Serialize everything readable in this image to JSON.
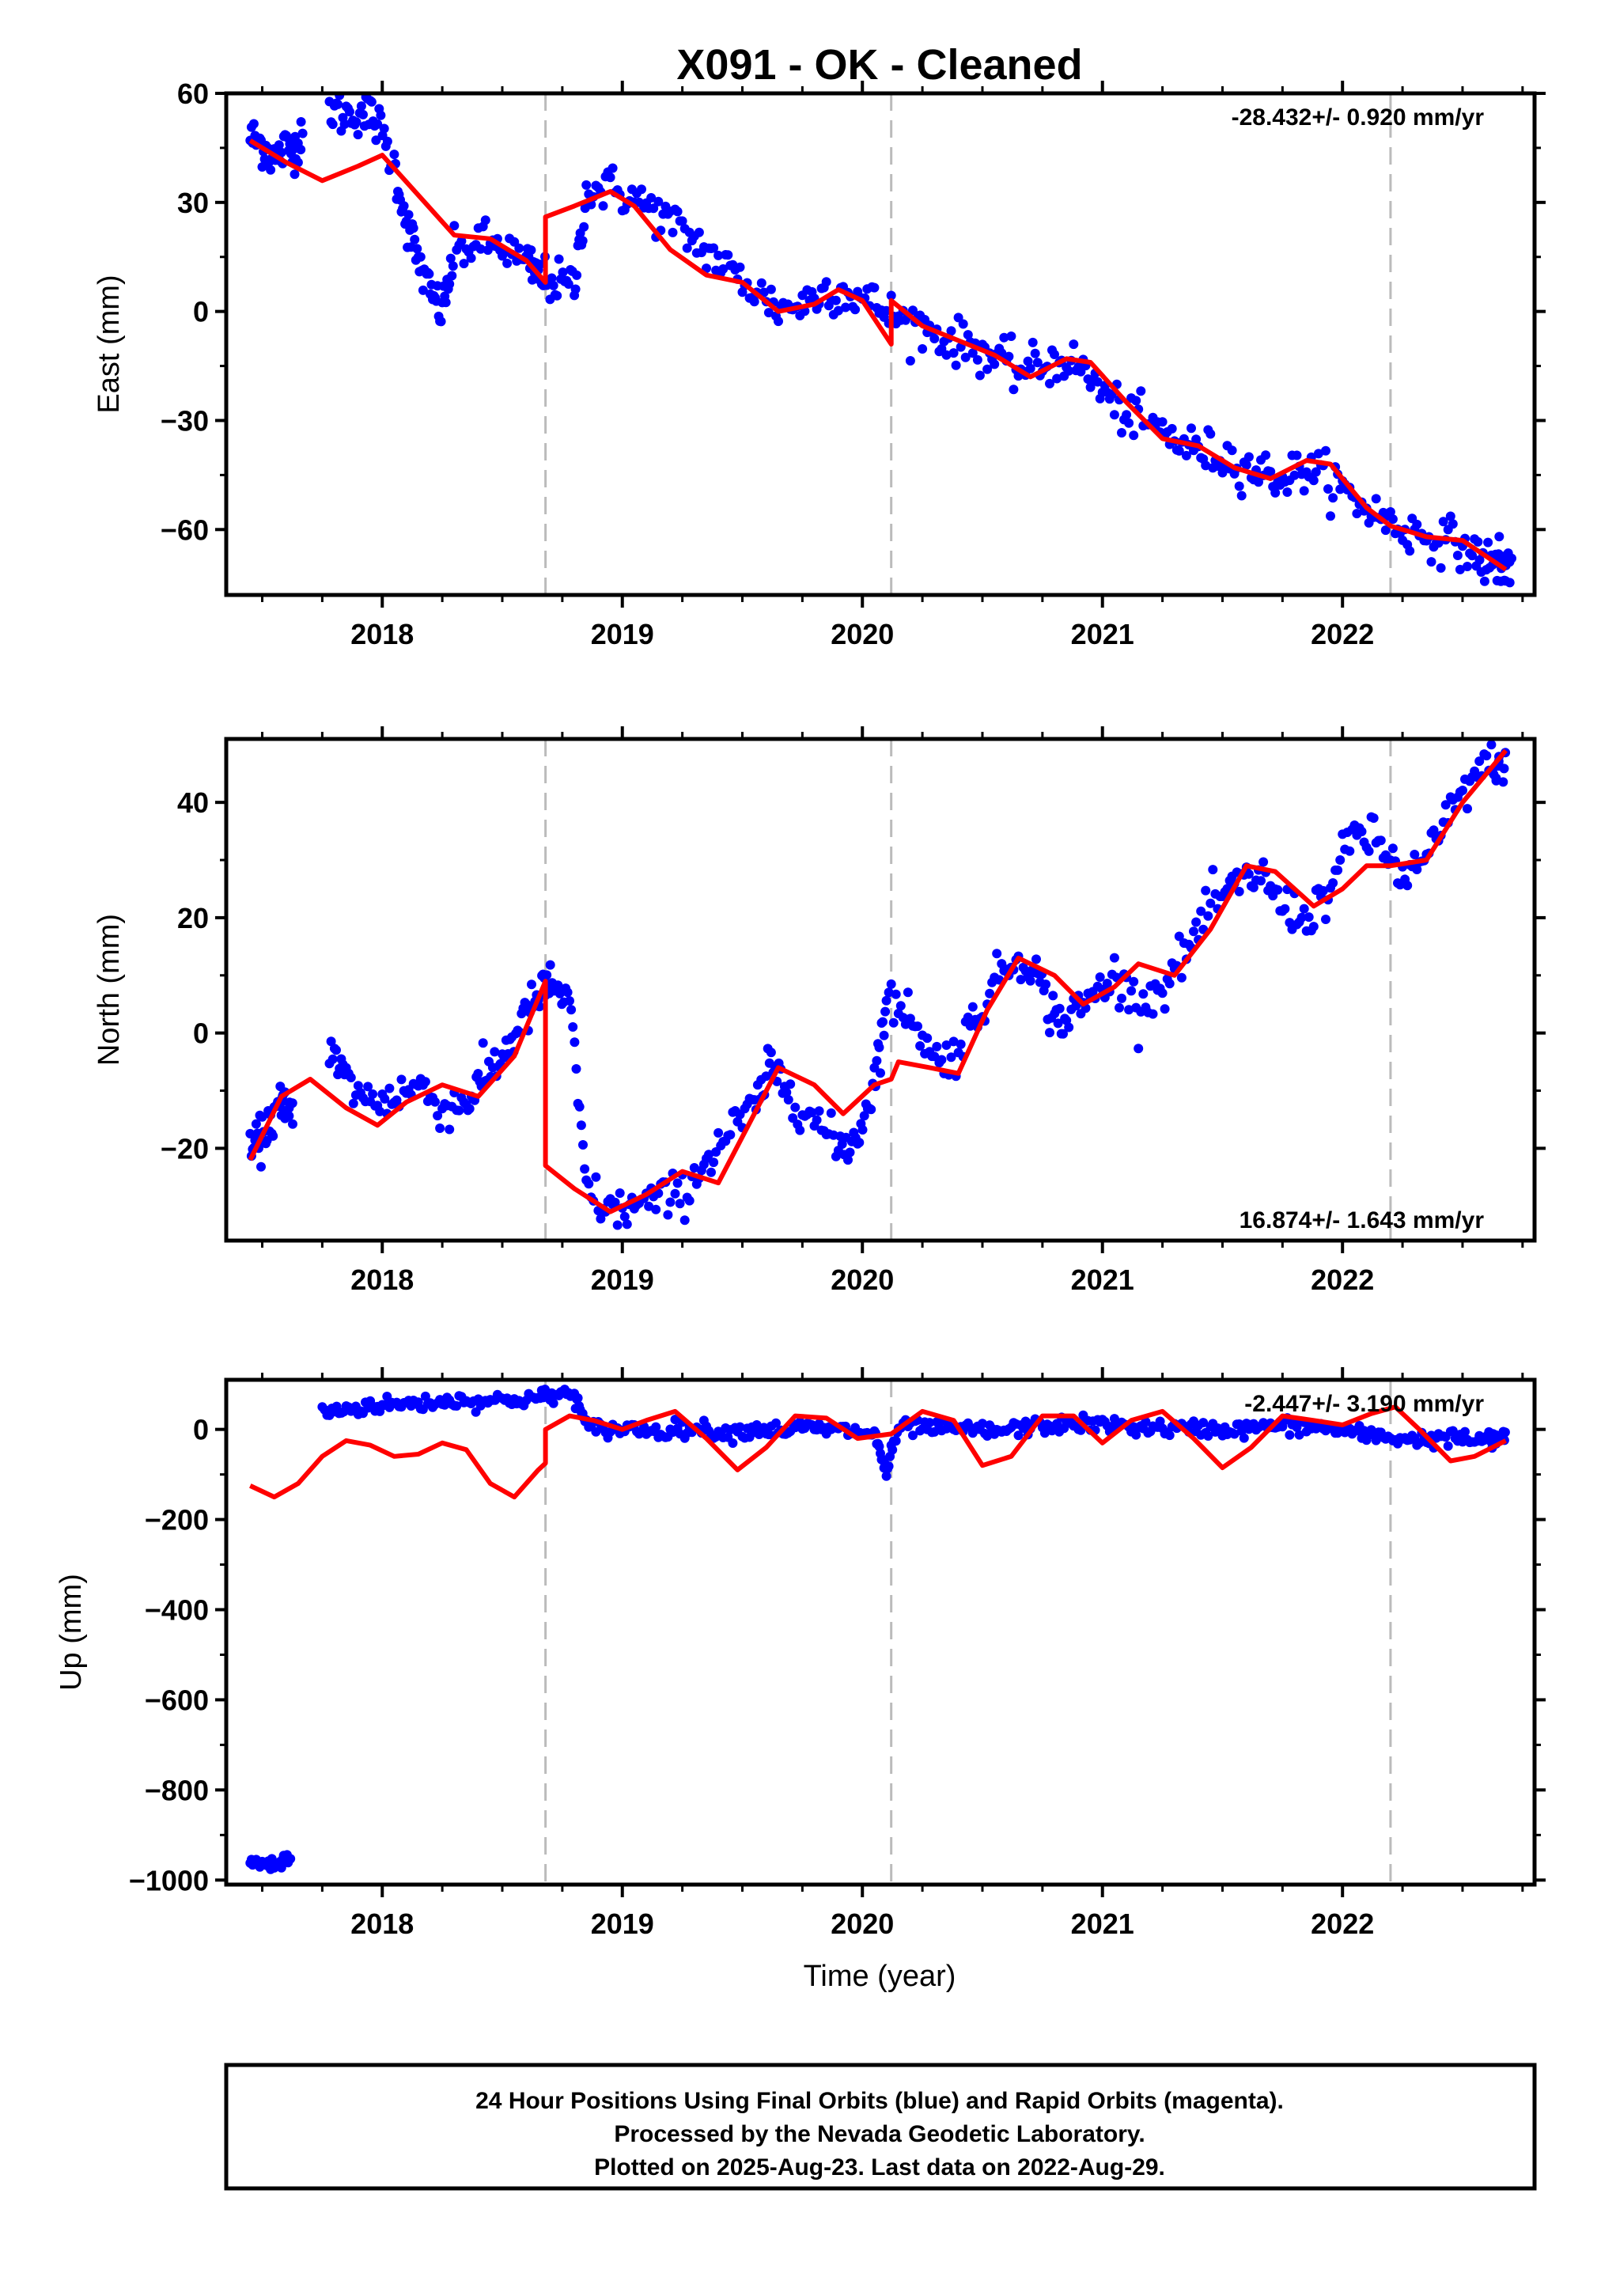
{
  "title": "X091  - OK - Cleaned",
  "xlabel": "Time (year)",
  "footer": {
    "line1": "24 Hour Positions Using Final Orbits (blue) and Rapid Orbits (magenta).",
    "line2": "Processed by the Nevada Geodetic Laboratory.",
    "line3": "Plotted on 2025-Aug-23. Last data on 2022-Aug-29."
  },
  "colors": {
    "points": "#0000ff",
    "model": "#ff0000",
    "breaks": "#bbbbbb"
  },
  "chart_data": [
    {
      "type": "scatter",
      "component": "East",
      "ylabel": "East (mm)",
      "rate_label": "-28.432+/- 0.920 mm/yr",
      "xlim": [
        2017.35,
        2022.8
      ],
      "ylim": [
        -78,
        60
      ],
      "yticks": [
        60,
        30,
        0,
        -30,
        -60
      ],
      "xticks": [
        2018,
        2019,
        2020,
        2021,
        2022
      ],
      "xtick_labels": [
        "2018",
        "2019",
        "2020",
        "2021",
        "2022"
      ],
      "breaks": [
        2018.68,
        2020.12,
        2022.2
      ],
      "observations": [
        [
          2017.45,
          48
        ],
        [
          2017.5,
          46
        ],
        [
          2017.55,
          42
        ],
        [
          2017.6,
          45
        ],
        [
          2017.65,
          46
        ],
        [
          2017.78,
          56
        ],
        [
          2017.85,
          54
        ],
        [
          2017.92,
          55
        ],
        [
          2017.98,
          52
        ],
        [
          2018.05,
          40
        ],
        [
          2018.1,
          25
        ],
        [
          2018.15,
          14
        ],
        [
          2018.2,
          5
        ],
        [
          2018.25,
          0
        ],
        [
          2018.3,
          16
        ],
        [
          2018.4,
          19
        ],
        [
          2018.5,
          18
        ],
        [
          2018.6,
          13
        ],
        [
          2018.65,
          10
        ],
        [
          2018.72,
          8
        ],
        [
          2018.8,
          7
        ],
        [
          2018.85,
          33
        ],
        [
          2018.95,
          34
        ],
        [
          2019.05,
          31
        ],
        [
          2019.15,
          27
        ],
        [
          2019.25,
          22
        ],
        [
          2019.35,
          17
        ],
        [
          2019.45,
          11
        ],
        [
          2019.55,
          6
        ],
        [
          2019.65,
          1
        ],
        [
          2019.75,
          2
        ],
        [
          2019.85,
          6
        ],
        [
          2019.95,
          5
        ],
        [
          2020.05,
          2
        ],
        [
          2020.15,
          -2
        ],
        [
          2020.25,
          -4
        ],
        [
          2020.35,
          -8
        ],
        [
          2020.45,
          -9
        ],
        [
          2020.55,
          -13
        ],
        [
          2020.65,
          -16
        ],
        [
          2020.75,
          -15
        ],
        [
          2020.85,
          -13
        ],
        [
          2020.95,
          -18
        ],
        [
          2021.05,
          -26
        ],
        [
          2021.15,
          -30
        ],
        [
          2021.25,
          -33
        ],
        [
          2021.35,
          -37
        ],
        [
          2021.45,
          -39
        ],
        [
          2021.55,
          -41
        ],
        [
          2021.65,
          -44
        ],
        [
          2021.75,
          -46
        ],
        [
          2021.85,
          -43
        ],
        [
          2021.95,
          -46
        ],
        [
          2022.05,
          -52
        ],
        [
          2022.15,
          -56
        ],
        [
          2022.25,
          -60
        ],
        [
          2022.35,
          -62
        ],
        [
          2022.45,
          -63
        ],
        [
          2022.55,
          -67
        ],
        [
          2022.62,
          -70
        ],
        [
          2022.68,
          -69
        ]
      ],
      "model": [
        [
          2017.45,
          47
        ],
        [
          2017.6,
          41
        ],
        [
          2017.75,
          36
        ],
        [
          2017.9,
          40
        ],
        [
          2018.0,
          43
        ],
        [
          2018.15,
          32
        ],
        [
          2018.3,
          21
        ],
        [
          2018.45,
          20
        ],
        [
          2018.6,
          14
        ],
        [
          2018.68,
          8
        ],
        [
          2018.68,
          26
        ],
        [
          2018.8,
          29
        ],
        [
          2018.95,
          33
        ],
        [
          2019.05,
          29
        ],
        [
          2019.2,
          17
        ],
        [
          2019.35,
          10
        ],
        [
          2019.5,
          8
        ],
        [
          2019.65,
          0
        ],
        [
          2019.8,
          2
        ],
        [
          2019.9,
          6
        ],
        [
          2020.0,
          3
        ],
        [
          2020.12,
          -9
        ],
        [
          2020.12,
          3
        ],
        [
          2020.25,
          -4
        ],
        [
          2020.4,
          -8
        ],
        [
          2020.55,
          -12
        ],
        [
          2020.7,
          -18
        ],
        [
          2020.85,
          -13
        ],
        [
          2020.95,
          -14
        ],
        [
          2021.1,
          -25
        ],
        [
          2021.25,
          -35
        ],
        [
          2021.4,
          -37
        ],
        [
          2021.55,
          -43
        ],
        [
          2021.7,
          -46
        ],
        [
          2021.85,
          -41
        ],
        [
          2021.95,
          -42
        ],
        [
          2022.1,
          -54
        ],
        [
          2022.2,
          -59
        ],
        [
          2022.35,
          -62
        ],
        [
          2022.5,
          -63
        ],
        [
          2022.68,
          -71
        ]
      ]
    },
    {
      "type": "scatter",
      "component": "North",
      "ylabel": "North (mm)",
      "rate_label": "16.874+/- 1.643 mm/yr",
      "xlim": [
        2017.35,
        2022.8
      ],
      "ylim": [
        -36,
        51
      ],
      "yticks": [
        40,
        20,
        0,
        -20
      ],
      "xticks": [
        2018,
        2019,
        2020,
        2021,
        2022
      ],
      "xtick_labels": [
        "2018",
        "2019",
        "2020",
        "2021",
        "2022"
      ],
      "breaks": [
        2018.68,
        2020.12,
        2022.2
      ],
      "observations": [
        [
          2017.45,
          -21
        ],
        [
          2017.5,
          -18
        ],
        [
          2017.55,
          -14
        ],
        [
          2017.6,
          -12
        ],
        [
          2017.78,
          -3
        ],
        [
          2017.85,
          -8
        ],
        [
          2017.95,
          -12
        ],
        [
          2018.05,
          -11
        ],
        [
          2018.15,
          -9
        ],
        [
          2018.25,
          -13
        ],
        [
          2018.35,
          -12
        ],
        [
          2018.42,
          -8
        ],
        [
          2018.5,
          -4
        ],
        [
          2018.58,
          2
        ],
        [
          2018.65,
          6
        ],
        [
          2018.7,
          9
        ],
        [
          2018.78,
          5
        ],
        [
          2018.85,
          -27
        ],
        [
          2018.95,
          -31
        ],
        [
          2019.05,
          -30
        ],
        [
          2019.15,
          -29
        ],
        [
          2019.25,
          -28
        ],
        [
          2019.35,
          -22
        ],
        [
          2019.45,
          -17
        ],
        [
          2019.55,
          -13
        ],
        [
          2019.62,
          -6
        ],
        [
          2019.7,
          -10
        ],
        [
          2019.8,
          -15
        ],
        [
          2019.9,
          -20
        ],
        [
          2019.98,
          -18
        ],
        [
          2020.05,
          -8
        ],
        [
          2020.1,
          5
        ],
        [
          2020.2,
          4
        ],
        [
          2020.3,
          -5
        ],
        [
          2020.4,
          -3
        ],
        [
          2020.5,
          5
        ],
        [
          2020.6,
          12
        ],
        [
          2020.7,
          13
        ],
        [
          2020.78,
          4
        ],
        [
          2020.85,
          2
        ],
        [
          2020.95,
          6
        ],
        [
          2021.05,
          10
        ],
        [
          2021.15,
          5
        ],
        [
          2021.25,
          8
        ],
        [
          2021.35,
          14
        ],
        [
          2021.45,
          22
        ],
        [
          2021.55,
          25
        ],
        [
          2021.65,
          28
        ],
        [
          2021.75,
          22
        ],
        [
          2021.85,
          20
        ],
        [
          2021.95,
          25
        ],
        [
          2022.05,
          35
        ],
        [
          2022.15,
          33
        ],
        [
          2022.25,
          27
        ],
        [
          2022.35,
          30
        ],
        [
          2022.45,
          38
        ],
        [
          2022.55,
          45
        ],
        [
          2022.65,
          47
        ]
      ],
      "model": [
        [
          2017.45,
          -22
        ],
        [
          2017.58,
          -11
        ],
        [
          2017.7,
          -8
        ],
        [
          2017.85,
          -13
        ],
        [
          2017.98,
          -16
        ],
        [
          2018.1,
          -12
        ],
        [
          2018.25,
          -9
        ],
        [
          2018.4,
          -11
        ],
        [
          2018.55,
          -4
        ],
        [
          2018.68,
          9
        ],
        [
          2018.68,
          -23
        ],
        [
          2018.8,
          -27
        ],
        [
          2018.95,
          -31
        ],
        [
          2019.1,
          -28
        ],
        [
          2019.25,
          -24
        ],
        [
          2019.4,
          -26
        ],
        [
          2019.55,
          -14
        ],
        [
          2019.65,
          -6
        ],
        [
          2019.8,
          -9
        ],
        [
          2019.92,
          -14
        ],
        [
          2020.05,
          -9
        ],
        [
          2020.12,
          -8
        ],
        [
          2020.15,
          -5
        ],
        [
          2020.28,
          -6
        ],
        [
          2020.4,
          -7
        ],
        [
          2020.52,
          4
        ],
        [
          2020.65,
          13
        ],
        [
          2020.8,
          10
        ],
        [
          2020.92,
          5
        ],
        [
          2021.05,
          8
        ],
        [
          2021.15,
          12
        ],
        [
          2021.3,
          10
        ],
        [
          2021.45,
          18
        ],
        [
          2021.6,
          29
        ],
        [
          2021.72,
          28
        ],
        [
          2021.88,
          22
        ],
        [
          2022.0,
          25
        ],
        [
          2022.1,
          29
        ],
        [
          2022.2,
          29
        ],
        [
          2022.35,
          30
        ],
        [
          2022.5,
          40
        ],
        [
          2022.68,
          49
        ]
      ]
    },
    {
      "type": "scatter",
      "component": "Up",
      "ylabel": "Up (mm)",
      "rate_label": "-2.447+/- 3.190 mm/yr",
      "xlim": [
        2017.35,
        2022.8
      ],
      "ylim": [
        -1010,
        110
      ],
      "yticks": [
        0,
        -200,
        -400,
        -600,
        -800,
        -1000
      ],
      "ytick_labels": [
        "0",
        "−200",
        "−400",
        "−600",
        "−800",
        "−1000"
      ],
      "xticks": [
        2018,
        2019,
        2020,
        2021,
        2022
      ],
      "xtick_labels": [
        "2018",
        "2019",
        "2020",
        "2021",
        "2022"
      ],
      "breaks": [
        2018.68,
        2020.12,
        2022.2
      ],
      "observations": [
        [
          2017.45,
          -965
        ],
        [
          2017.5,
          -962
        ],
        [
          2017.55,
          -970
        ],
        [
          2017.6,
          -958
        ],
        [
          2017.75,
          38
        ],
        [
          2017.85,
          45
        ],
        [
          2017.95,
          52
        ],
        [
          2018.05,
          55
        ],
        [
          2018.15,
          58
        ],
        [
          2018.25,
          62
        ],
        [
          2018.35,
          65
        ],
        [
          2018.45,
          63
        ],
        [
          2018.55,
          66
        ],
        [
          2018.65,
          70
        ],
        [
          2018.72,
          75
        ],
        [
          2018.8,
          80
        ],
        [
          2018.85,
          5
        ],
        [
          2018.95,
          0
        ],
        [
          2019.05,
          2
        ],
        [
          2019.15,
          -5
        ],
        [
          2019.25,
          3
        ],
        [
          2019.35,
          0
        ],
        [
          2019.45,
          -8
        ],
        [
          2019.55,
          2
        ],
        [
          2019.65,
          -3
        ],
        [
          2019.75,
          4
        ],
        [
          2019.85,
          0
        ],
        [
          2019.95,
          -4
        ],
        [
          2020.05,
          -10
        ],
        [
          2020.1,
          -95
        ],
        [
          2020.15,
          2
        ],
        [
          2020.25,
          5
        ],
        [
          2020.35,
          -2
        ],
        [
          2020.45,
          0
        ],
        [
          2020.55,
          -5
        ],
        [
          2020.65,
          3
        ],
        [
          2020.75,
          8
        ],
        [
          2020.85,
          10
        ],
        [
          2020.95,
          12
        ],
        [
          2021.05,
          8
        ],
        [
          2021.15,
          5
        ],
        [
          2021.25,
          2
        ],
        [
          2021.35,
          0
        ],
        [
          2021.45,
          3
        ],
        [
          2021.55,
          -2
        ],
        [
          2021.65,
          5
        ],
        [
          2021.75,
          8
        ],
        [
          2021.85,
          5
        ],
        [
          2021.95,
          2
        ],
        [
          2022.05,
          -10
        ],
        [
          2022.15,
          -15
        ],
        [
          2022.25,
          -20
        ],
        [
          2022.35,
          -22
        ],
        [
          2022.45,
          -18
        ],
        [
          2022.55,
          -25
        ],
        [
          2022.65,
          -20
        ]
      ],
      "model": [
        [
          2017.45,
          -125
        ],
        [
          2017.55,
          -150
        ],
        [
          2017.65,
          -120
        ],
        [
          2017.75,
          -60
        ],
        [
          2017.85,
          -25
        ],
        [
          2017.95,
          -35
        ],
        [
          2018.05,
          -60
        ],
        [
          2018.15,
          -55
        ],
        [
          2018.25,
          -30
        ],
        [
          2018.35,
          -45
        ],
        [
          2018.45,
          -120
        ],
        [
          2018.55,
          -150
        ],
        [
          2018.65,
          -90
        ],
        [
          2018.68,
          -75
        ],
        [
          2018.68,
          0
        ],
        [
          2018.78,
          30
        ],
        [
          2018.88,
          20
        ],
        [
          2019.0,
          0
        ],
        [
          2019.1,
          20
        ],
        [
          2019.22,
          40
        ],
        [
          2019.35,
          -20
        ],
        [
          2019.48,
          -90
        ],
        [
          2019.6,
          -40
        ],
        [
          2019.72,
          30
        ],
        [
          2019.85,
          25
        ],
        [
          2019.98,
          -20
        ],
        [
          2020.12,
          -10
        ],
        [
          2020.25,
          40
        ],
        [
          2020.38,
          20
        ],
        [
          2020.5,
          -80
        ],
        [
          2020.62,
          -60
        ],
        [
          2020.75,
          30
        ],
        [
          2020.88,
          30
        ],
        [
          2021.0,
          -30
        ],
        [
          2021.12,
          20
        ],
        [
          2021.25,
          40
        ],
        [
          2021.38,
          -20
        ],
        [
          2021.5,
          -85
        ],
        [
          2021.62,
          -40
        ],
        [
          2021.75,
          30
        ],
        [
          2021.88,
          20
        ],
        [
          2022.0,
          10
        ],
        [
          2022.12,
          35
        ],
        [
          2022.22,
          50
        ],
        [
          2022.32,
          0
        ],
        [
          2022.45,
          -70
        ],
        [
          2022.55,
          -60
        ],
        [
          2022.68,
          -25
        ]
      ]
    }
  ]
}
